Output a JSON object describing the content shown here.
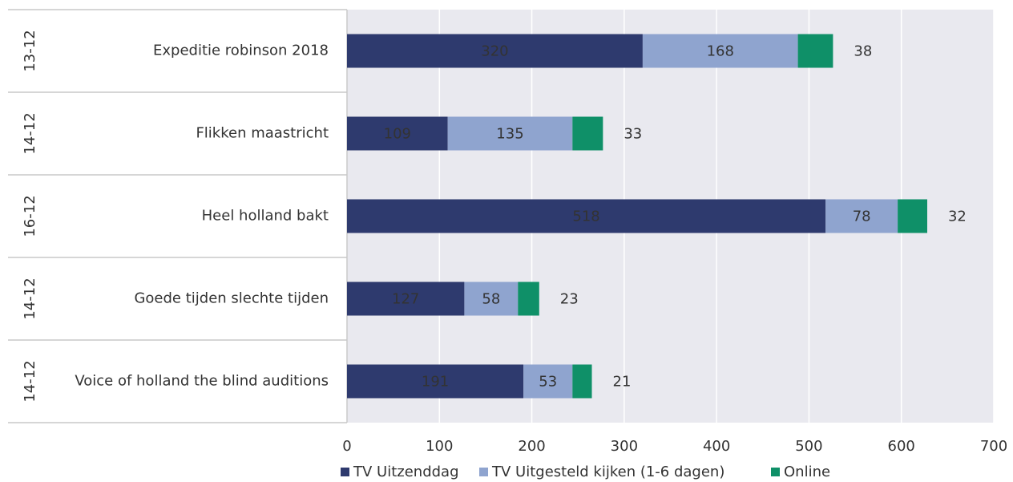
{
  "chart_data": {
    "type": "stacked_barh",
    "groups": [
      "13-12",
      "14-12",
      "16-12",
      "14-12",
      "14-12"
    ],
    "categories": [
      "Expeditie robinson 2018",
      "Flikken maastricht",
      "Heel holland bakt",
      "Goede tijden slechte tijden",
      "Voice of holland the blind auditions"
    ],
    "series": [
      {
        "name": "TV Uitzenddag",
        "color": "#2e3a6e",
        "values": [
          320,
          109,
          518,
          127,
          191
        ]
      },
      {
        "name": "TV Uitgesteld kijken (1-6 dagen)",
        "color": "#8fa4cf",
        "values": [
          168,
          135,
          78,
          58,
          53
        ]
      },
      {
        "name": "Online",
        "color": "#0f9068",
        "values": [
          38,
          33,
          32,
          23,
          21
        ]
      }
    ],
    "xlim": [
      0,
      700
    ],
    "xticks": [
      0,
      100,
      200,
      300,
      400,
      500,
      600,
      700
    ],
    "grid": true,
    "legend": "bottom"
  }
}
